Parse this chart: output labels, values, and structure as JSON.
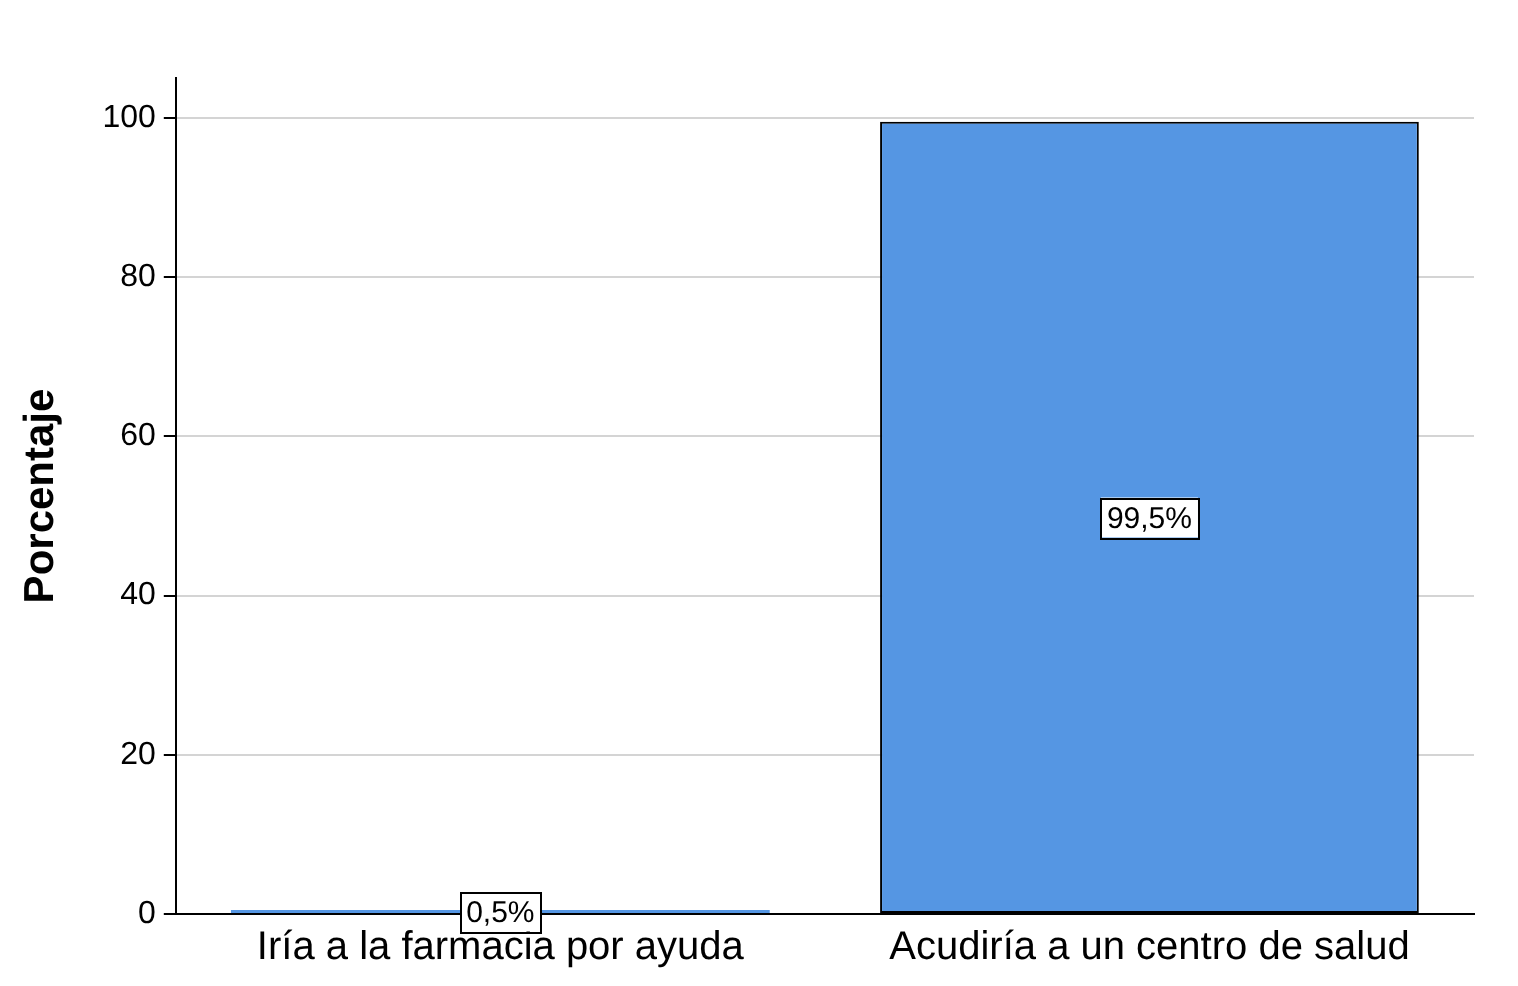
{
  "chart_data": {
    "type": "bar",
    "ylabel": "Porcentaje",
    "categories": [
      "Iría a la farmacia por ayuda",
      "Acudiría a un centro de salud"
    ],
    "values": [
      0.5,
      99.5
    ],
    "color": "#5596e3",
    "value_labels": [
      "0,5%",
      "99,5%"
    ],
    "ylim": [
      0,
      105
    ],
    "yticks": [
      0,
      20,
      40,
      60,
      80,
      100
    ],
    "grid": "y"
  }
}
